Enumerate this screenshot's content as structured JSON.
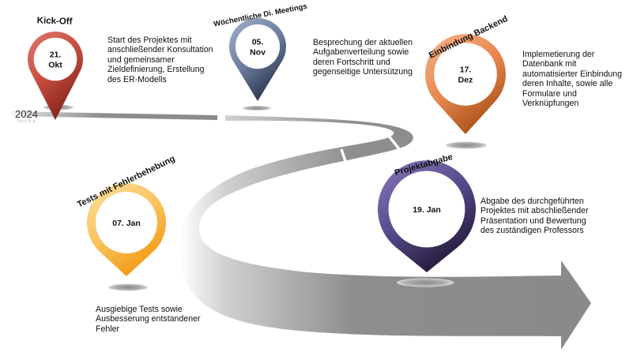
{
  "year_marks": {
    "left": "2024",
    "road": "2024"
  },
  "milestones": [
    {
      "id": "kickoff",
      "title": "Kick-Off",
      "date_lines": [
        "21.",
        "Okt"
      ],
      "colors": {
        "light": "#d9635a",
        "dark": "#8a2a22"
      },
      "description": [
        "Start des Projektes mit",
        "anschließender Konsultation",
        "und gemeinsamer",
        "Zieldefinierung, Erstellung",
        "des ER-Modells"
      ]
    },
    {
      "id": "meetings",
      "title": "Wöchentliche Di. Meetings",
      "date_lines": [
        "05.",
        "Nov"
      ],
      "colors": {
        "light": "#8b9bb8",
        "dark": "#2f3b55"
      },
      "description": [
        "Besprechung der aktuellen",
        "Aufgabenverteilung sowie",
        "deren Fortschritt und",
        "gegenseitige Untersützung"
      ]
    },
    {
      "id": "backend",
      "title": "Einbindung Backend",
      "date_lines": [
        "17.",
        "Dez"
      ],
      "colors": {
        "light": "#f0a276",
        "dark": "#b35a1e"
      },
      "description": [
        "Implemetierung der",
        "Datenbank mit",
        "automatisierter Einbindung",
        "deren Inhalte, sowie alle",
        "Formulare und",
        "Verknüpfungen"
      ]
    },
    {
      "id": "tests",
      "title": "Tests mit Fehlerbehebung",
      "date_lines": [
        "07. Jan"
      ],
      "colors": {
        "light": "#fbd47a",
        "dark": "#f0a01a"
      },
      "description": [
        "Ausgiebige Tests sowie",
        "Ausbesserung entstandener",
        "Fehler"
      ]
    },
    {
      "id": "abgabe",
      "title": "Projektabgabe",
      "date_lines": [
        "19. Jan"
      ],
      "colors": {
        "light": "#7566a8",
        "dark": "#2b2040"
      },
      "description": [
        "Abgabe des durchgeführten",
        "Projektes mit abschließender",
        "Präsentation und Bewertung",
        "des zuständigen Professors"
      ]
    }
  ]
}
